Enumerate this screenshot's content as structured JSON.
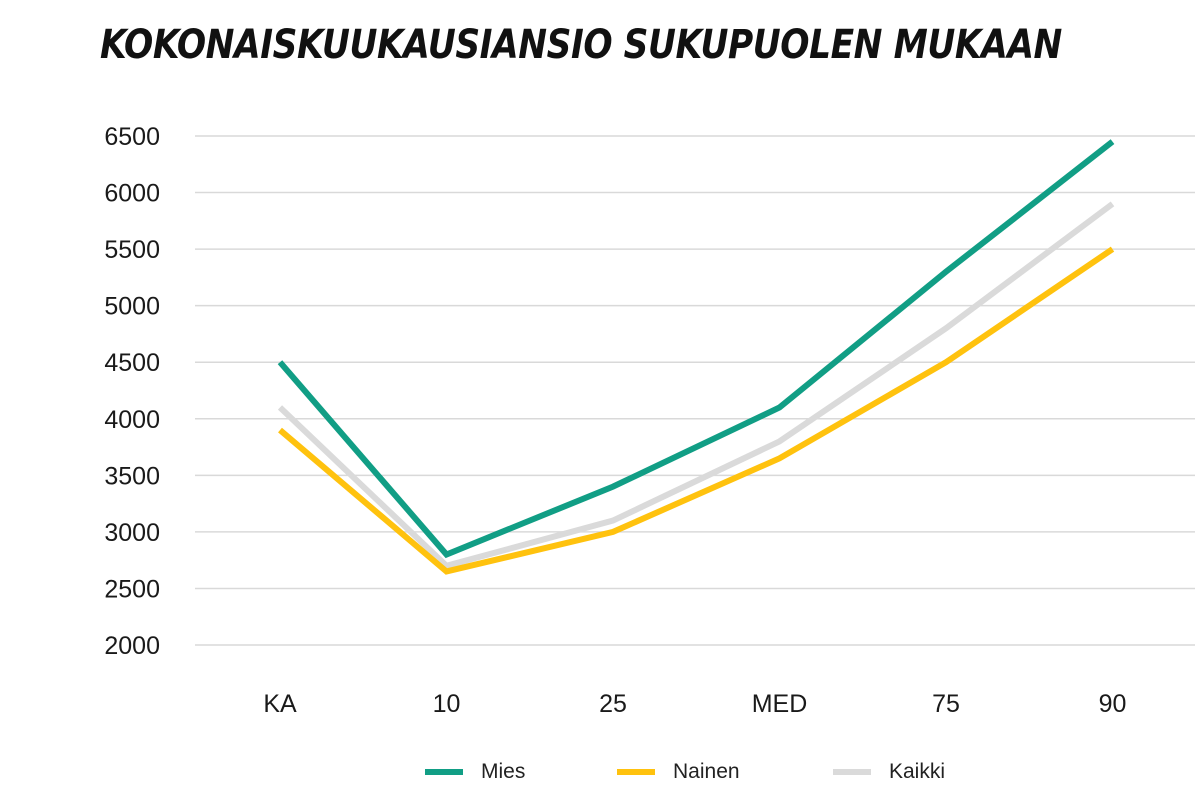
{
  "chart_data": {
    "type": "line",
    "title": "KOKONAISKUUKAUSIANSIO SUKUPUOLEN MUKAAN",
    "xlabel": "",
    "ylabel": "",
    "categories": [
      "KA",
      "10",
      "25",
      "MED",
      "75",
      "90"
    ],
    "yticks": [
      "6500",
      "6000",
      "5500",
      "5000",
      "4500",
      "4000",
      "3500",
      "3000",
      "2500",
      "2000"
    ],
    "ylim": [
      2000,
      6500
    ],
    "grid": true,
    "legend_position": "bottom",
    "series": [
      {
        "name": "Mies",
        "color": "#119E85",
        "values": [
          4500,
          2800,
          3400,
          4100,
          5300,
          6450
        ]
      },
      {
        "name": "Nainen",
        "color": "#FFC20E",
        "values": [
          3900,
          2650,
          3000,
          3650,
          4500,
          5500
        ]
      },
      {
        "name": "Kaikki",
        "color": "#DADADA",
        "values": [
          4100,
          2700,
          3100,
          3800,
          4800,
          5900
        ]
      }
    ]
  }
}
